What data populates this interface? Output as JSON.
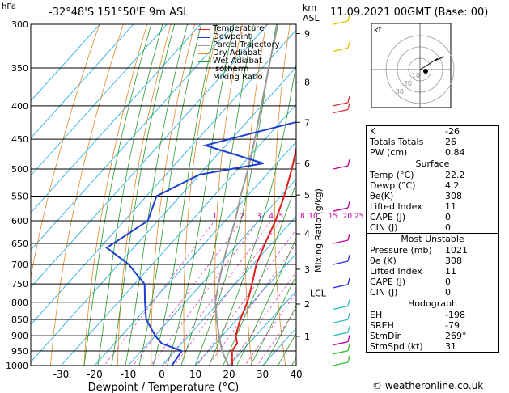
{
  "header": {
    "hpa_label": "hPa",
    "location": "-32°48'S  151°50'E  9m  ASL",
    "km_label": "km",
    "asl_label": "ASL",
    "datetime": "11.09.2021  00GMT  (Base: 00)"
  },
  "legend": [
    {
      "label": "Temperature",
      "color": "#e0201f"
    },
    {
      "label": "Dewpoint",
      "color": "#1f3fd0"
    },
    {
      "label": "Parcel Trajectory",
      "color": "#999999"
    },
    {
      "label": "Dry Adiabat",
      "color": "#e08a2a"
    },
    {
      "label": "Wet Adiabat",
      "color": "#2a9a2a"
    },
    {
      "label": "Isotherm",
      "color": "#2ab0e0"
    },
    {
      "label": "Mixing Ratio",
      "color": "#e040c0",
      "dashed": true
    }
  ],
  "chart_data": {
    "type": "line",
    "title": "-32°48'S  151°50'E  9m  ASL",
    "xlabel": "Dewpoint / Temperature (°C)",
    "ylabel": "hPa",
    "y2label": "Mixing Ratio (g/kg)",
    "pressure_ticks": [
      300,
      350,
      400,
      450,
      500,
      550,
      600,
      650,
      700,
      750,
      800,
      850,
      900,
      950,
      1000
    ],
    "x_ticks": [
      -30,
      -20,
      -10,
      0,
      10,
      20,
      30,
      40
    ],
    "xlim": [
      -40,
      40
    ],
    "km_ticks": [
      {
        "km": "1",
        "p": 902
      },
      {
        "km": "2",
        "p": 805
      },
      {
        "km": "3",
        "p": 712
      },
      {
        "km": "4",
        "p": 628
      },
      {
        "km": "5",
        "p": 548
      },
      {
        "km": "6",
        "p": 490
      },
      {
        "km": "7",
        "p": 424
      },
      {
        "km": "8",
        "p": 368
      },
      {
        "km": "9",
        "p": 310
      }
    ],
    "lcl": {
      "label": "LCL",
      "p": 788
    },
    "mixing_ratio_labels": [
      "1",
      "2",
      "3",
      "4",
      "5",
      "8",
      "10",
      "15",
      "20",
      "25"
    ],
    "mixing_ratio_values": [
      1,
      2,
      3,
      4,
      5,
      8,
      10,
      15,
      20,
      25
    ],
    "series": [
      {
        "name": "Temperature",
        "points": [
          [
            1021,
            22.2
          ],
          [
            1000,
            21
          ],
          [
            950,
            17
          ],
          [
            925,
            16.5
          ],
          [
            900,
            14
          ],
          [
            850,
            11
          ],
          [
            800,
            8.5
          ],
          [
            750,
            5
          ],
          [
            700,
            1
          ],
          [
            650,
            -2
          ],
          [
            600,
            -5
          ],
          [
            550,
            -9
          ],
          [
            500,
            -14
          ],
          [
            450,
            -20
          ],
          [
            400,
            -27
          ],
          [
            350,
            -35
          ],
          [
            300,
            -44
          ]
        ]
      },
      {
        "name": "Dewpoint",
        "points": [
          [
            1021,
            4.2
          ],
          [
            1000,
            3
          ],
          [
            950,
            2
          ],
          [
            925,
            -6
          ],
          [
            900,
            -10
          ],
          [
            850,
            -17
          ],
          [
            800,
            -22
          ],
          [
            750,
            -27
          ],
          [
            700,
            -37
          ],
          [
            660,
            -48
          ],
          [
            600,
            -43
          ],
          [
            550,
            -47
          ],
          [
            510,
            -40
          ],
          [
            490,
            -24
          ],
          [
            460,
            -46
          ],
          [
            440,
            -35
          ],
          [
            420,
            -23
          ],
          [
            405,
            -27
          ],
          [
            380,
            -33
          ],
          [
            360,
            -28
          ],
          [
            340,
            -35
          ],
          [
            320,
            -40
          ],
          [
            300,
            -44
          ]
        ]
      },
      {
        "name": "Parcel Trajectory",
        "points": [
          [
            1021,
            22.2
          ],
          [
            950,
            14
          ],
          [
            900,
            9
          ],
          [
            850,
            4
          ],
          [
            800,
            -1
          ],
          [
            788,
            -2
          ],
          [
            750,
            -5
          ],
          [
            700,
            -9
          ],
          [
            650,
            -13
          ],
          [
            600,
            -17
          ],
          [
            550,
            -22
          ],
          [
            500,
            -27
          ],
          [
            450,
            -33
          ],
          [
            400,
            -40
          ],
          [
            350,
            -48
          ],
          [
            300,
            -57
          ]
        ]
      }
    ]
  },
  "hodograph": {
    "label": "kt",
    "ring_labels": [
      "10",
      "20",
      "30"
    ]
  },
  "indices": [
    {
      "label": "K",
      "value": "-26"
    },
    {
      "label": "Totals Totals",
      "value": "26"
    },
    {
      "label": "PW (cm)",
      "value": "0.84"
    }
  ],
  "surface": {
    "title": "Surface",
    "rows": [
      {
        "label": "Temp (°C)",
        "value": "22.2"
      },
      {
        "label": "Dewp (°C)",
        "value": "4.2"
      },
      {
        "label": "θe(K)",
        "value": "308"
      },
      {
        "label": "Lifted Index",
        "value": "11"
      },
      {
        "label": "CAPE (J)",
        "value": "0"
      },
      {
        "label": "CIN (J)",
        "value": "0"
      }
    ]
  },
  "most_unstable": {
    "title": "Most Unstable",
    "rows": [
      {
        "label": "Pressure (mb)",
        "value": "1021"
      },
      {
        "label": "θe (K)",
        "value": "308"
      },
      {
        "label": "Lifted Index",
        "value": "11"
      },
      {
        "label": "CAPE (J)",
        "value": "0"
      },
      {
        "label": "CIN (J)",
        "value": "0"
      }
    ]
  },
  "hodograph_table": {
    "title": "Hodograph",
    "rows": [
      {
        "label": "EH",
        "value": "-198"
      },
      {
        "label": "SREH",
        "value": "-79"
      },
      {
        "label": "StmDir",
        "value": "269°"
      },
      {
        "label": "StmSpd (kt)",
        "value": "31"
      }
    ]
  },
  "credit": "© weatheronline.co.uk"
}
